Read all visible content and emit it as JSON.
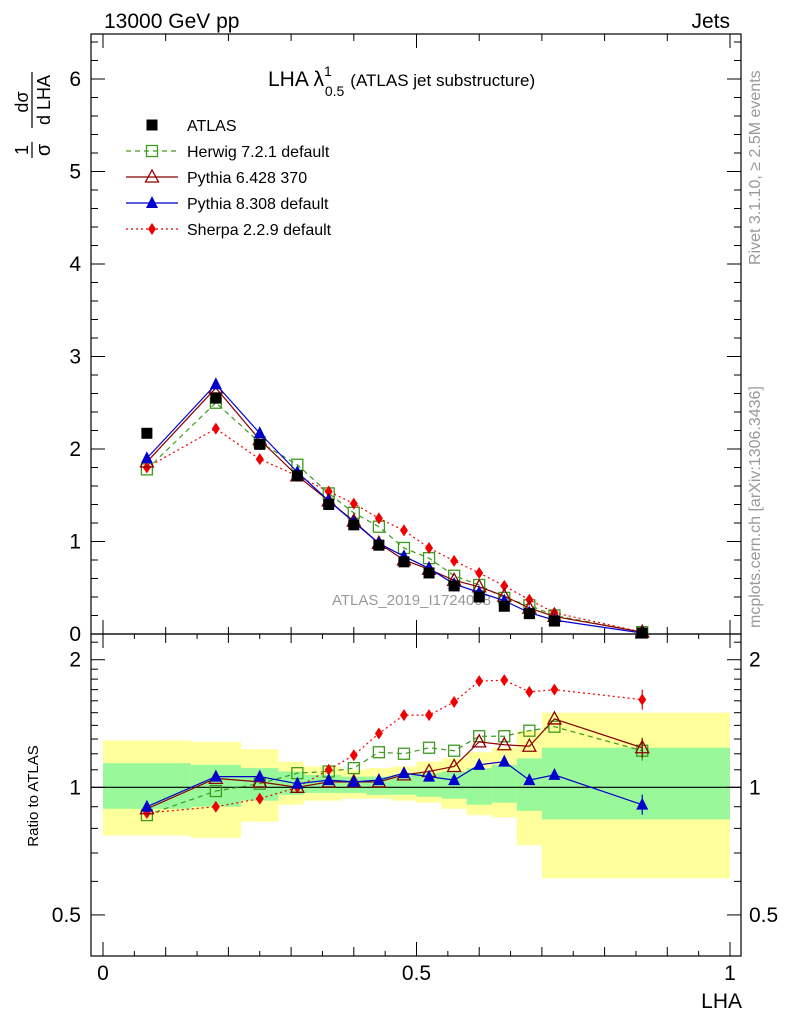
{
  "header": {
    "left": "13000 GeV pp",
    "right": "Jets"
  },
  "plot_title": {
    "main": "LHA λ",
    "sup": "1",
    "sub": "0.5",
    "suffix": "(ATLAS jet substructure)"
  },
  "y_axis_label_top": {
    "num1": "1",
    "den1": "σ",
    "num2": "dσ",
    "den2": "d LHA"
  },
  "y_axis_label_bottom": "Ratio to ATLAS",
  "x_axis_label": "LHA",
  "side_text_1": "Rivet 3.1.10, ≥ 2.5M events",
  "side_text_2": "mcplots.cern.ch [arXiv:1306.3436]",
  "watermark": "ATLAS_2019_I1724098",
  "colors": {
    "herwig": "#3d9a1f",
    "pythia6": "#8b0000",
    "pythia8": "#0000cc",
    "sherpa": "#ee0000",
    "band_inner": "#99f899",
    "band_outer": "#ffff9c",
    "data": "#000000"
  },
  "chart_data": [
    {
      "type": "scatter",
      "title": "LHA λ^1_0.5 (ATLAS jet substructure)",
      "xlabel": "LHA",
      "ylabel": "1/σ dσ/d LHA",
      "xlim": [
        0,
        1
      ],
      "ylim": [
        0,
        6.5
      ],
      "y_ticks": [
        "0",
        "1",
        "2",
        "3",
        "4",
        "5",
        "6"
      ],
      "x": [
        0.07,
        0.18,
        0.25,
        0.31,
        0.36,
        0.4,
        0.44,
        0.48,
        0.52,
        0.56,
        0.6,
        0.64,
        0.68,
        0.72,
        0.86
      ],
      "series": [
        {
          "name": "ATLAS",
          "values": [
            2.17,
            2.55,
            2.05,
            1.71,
            1.4,
            1.18,
            0.96,
            0.78,
            0.66,
            0.52,
            0.4,
            0.3,
            0.22,
            0.14,
            0.01
          ]
        },
        {
          "name": "Herwig 7.2.1 default",
          "values": [
            1.78,
            2.5,
            2.07,
            1.83,
            1.52,
            1.31,
            1.16,
            0.93,
            0.82,
            0.63,
            0.53,
            0.39,
            0.31,
            0.2,
            0.02
          ]
        },
        {
          "name": "Pythia 6.428 370",
          "values": [
            1.86,
            2.66,
            2.1,
            1.71,
            1.44,
            1.22,
            0.98,
            0.8,
            0.7,
            0.58,
            0.51,
            0.41,
            0.28,
            0.19,
            0.02
          ]
        },
        {
          "name": "Pythia 8.308 default",
          "values": [
            1.9,
            2.7,
            2.17,
            1.75,
            1.44,
            1.21,
            0.98,
            0.84,
            0.71,
            0.54,
            0.45,
            0.36,
            0.23,
            0.15,
            0.01
          ]
        },
        {
          "name": "Sherpa 2.2.9 default",
          "values": [
            1.8,
            2.22,
            1.89,
            1.71,
            1.54,
            1.41,
            1.25,
            1.12,
            0.93,
            0.79,
            0.66,
            0.52,
            0.37,
            0.23,
            0.02
          ]
        }
      ]
    },
    {
      "type": "scatter",
      "xlabel": "LHA",
      "ylabel": "Ratio to ATLAS",
      "xlim": [
        0,
        1
      ],
      "ylim": [
        0.4,
        2.3
      ],
      "y_scale": "log",
      "y_ticks": [
        "0.5",
        "1",
        "2"
      ],
      "x_ticks": [
        "0",
        "0.5",
        "1"
      ],
      "x": [
        0.07,
        0.18,
        0.25,
        0.31,
        0.36,
        0.4,
        0.44,
        0.48,
        0.52,
        0.56,
        0.6,
        0.64,
        0.68,
        0.72,
        0.86
      ],
      "series": [
        {
          "name": "Herwig 7.2.1 default",
          "values": [
            0.86,
            0.98,
            1.02,
            1.08,
            1.09,
            1.11,
            1.21,
            1.2,
            1.24,
            1.22,
            1.32,
            1.32,
            1.36,
            1.39,
            1.22
          ]
        },
        {
          "name": "Pythia 6.428 370",
          "values": [
            0.89,
            1.05,
            1.03,
            1.0,
            1.03,
            1.03,
            1.03,
            1.07,
            1.09,
            1.12,
            1.28,
            1.26,
            1.25,
            1.45,
            1.24
          ]
        },
        {
          "name": "Pythia 8.308 default",
          "values": [
            0.9,
            1.06,
            1.06,
            1.02,
            1.04,
            1.03,
            1.04,
            1.08,
            1.06,
            1.04,
            1.13,
            1.15,
            1.04,
            1.07,
            0.91
          ]
        },
        {
          "name": "Sherpa 2.2.9 default",
          "values": [
            0.87,
            0.9,
            0.94,
            1.0,
            1.1,
            1.19,
            1.34,
            1.48,
            1.48,
            1.59,
            1.78,
            1.79,
            1.68,
            1.7,
            1.61
          ]
        }
      ],
      "band_edges": [
        0.0,
        0.14,
        0.22,
        0.28,
        0.32,
        0.38,
        0.42,
        0.46,
        0.5,
        0.54,
        0.58,
        0.62,
        0.66,
        0.7,
        0.74,
        1.0
      ],
      "band_inner_low": [
        0.89,
        0.9,
        0.93,
        0.96,
        0.97,
        0.97,
        0.96,
        0.96,
        0.95,
        0.94,
        0.91,
        0.92,
        0.88,
        0.84,
        0.84
      ],
      "band_inner_high": [
        1.14,
        1.13,
        1.11,
        1.09,
        1.07,
        1.06,
        1.06,
        1.07,
        1.08,
        1.09,
        1.11,
        1.13,
        1.17,
        1.24,
        1.24
      ],
      "band_outer_low": [
        0.77,
        0.76,
        0.83,
        0.91,
        0.93,
        0.94,
        0.94,
        0.93,
        0.92,
        0.89,
        0.86,
        0.85,
        0.73,
        0.61,
        0.61
      ],
      "band_outer_high": [
        1.29,
        1.28,
        1.23,
        1.15,
        1.12,
        1.1,
        1.11,
        1.12,
        1.15,
        1.17,
        1.21,
        1.24,
        1.36,
        1.5,
        1.5
      ]
    }
  ]
}
